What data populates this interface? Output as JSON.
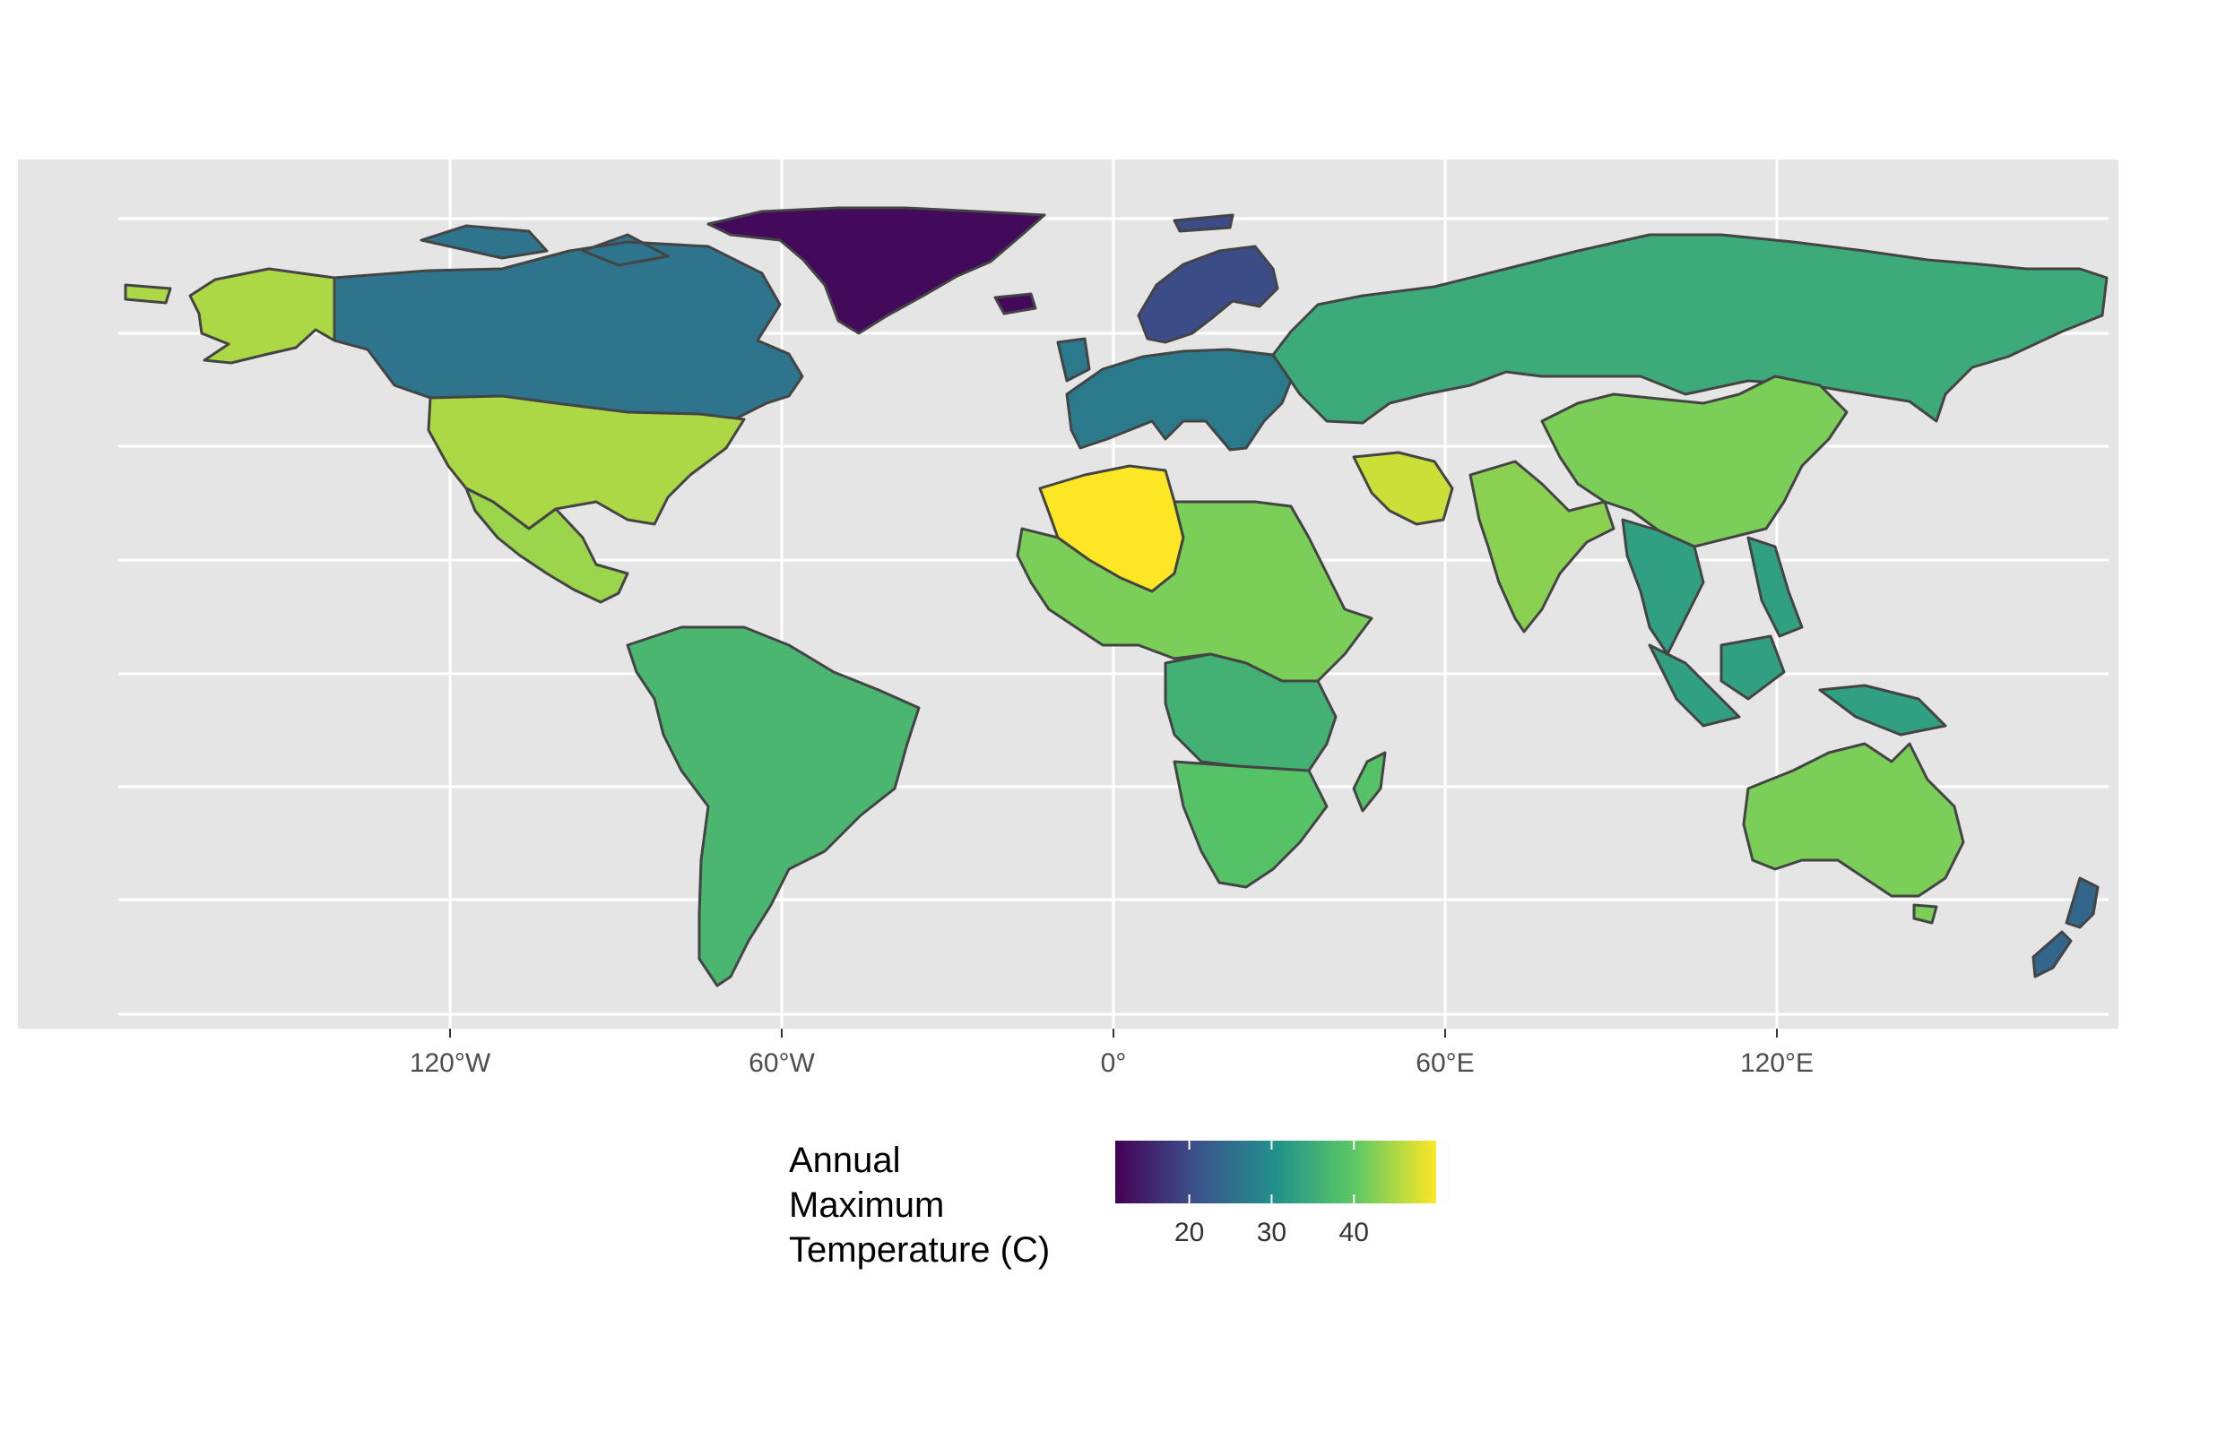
{
  "map": {
    "projection": "equirectangular (longitude/latitude)",
    "panel_background": "#e5e5e5",
    "gridline_color": "#ffffff",
    "border_color": "#444444",
    "x_axis_labels": [
      "120°W",
      "60°W",
      "0°",
      "60°E",
      "120°E"
    ]
  },
  "legend": {
    "title_lines": [
      "Annual",
      "Maximum",
      "Temperature (C)"
    ],
    "palette": "viridis",
    "min": 11,
    "max": 50,
    "ticks": [
      "20",
      "30",
      "40"
    ],
    "colors": [
      "#440154",
      "#3b528b",
      "#21918c",
      "#5ec962",
      "#fde725"
    ]
  },
  "regions": [
    {
      "name": "Greenland",
      "value": 12
    },
    {
      "name": "Scandinavia",
      "value": 20
    },
    {
      "name": "Canada",
      "value": 26
    },
    {
      "name": "Alaska",
      "value": 45
    },
    {
      "name": "United States",
      "value": 45
    },
    {
      "name": "Mexico",
      "value": 44
    },
    {
      "name": "South America",
      "value": 37
    },
    {
      "name": "Europe",
      "value": 27
    },
    {
      "name": "Russia",
      "value": 35
    },
    {
      "name": "China",
      "value": 42
    },
    {
      "name": "Iran",
      "value": 47
    },
    {
      "name": "India",
      "value": 43
    },
    {
      "name": "Algeria",
      "value": 50
    },
    {
      "name": "North Africa",
      "value": 42
    },
    {
      "name": "Central Africa",
      "value": 36
    },
    {
      "name": "Southern Africa",
      "value": 39
    },
    {
      "name": "Southeast Asia",
      "value": 33
    },
    {
      "name": "Australia",
      "value": 42
    },
    {
      "name": "New Zealand",
      "value": 24
    }
  ]
}
